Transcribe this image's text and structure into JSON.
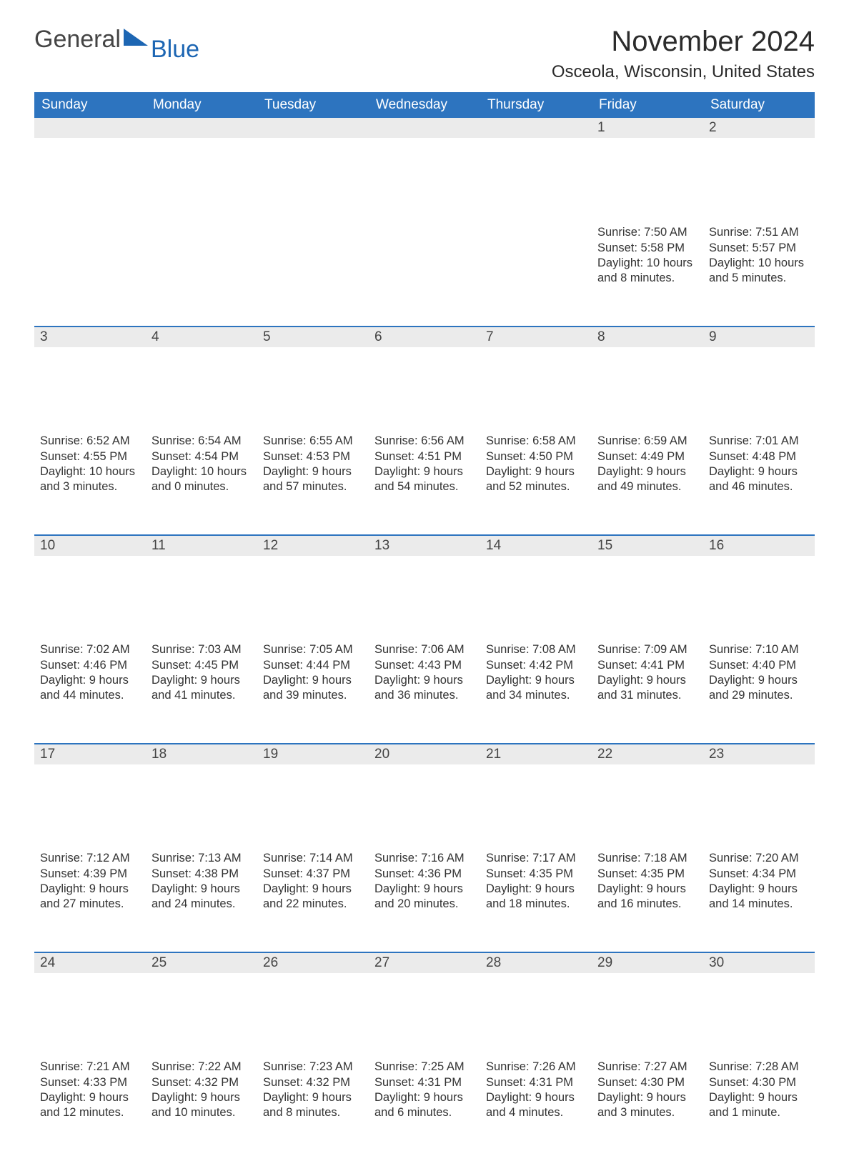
{
  "logo": {
    "text1": "General",
    "text2": "Blue",
    "triangle_color": "#1d66b3"
  },
  "title": "November 2024",
  "subtitle": "Osceola, Wisconsin, United States",
  "colors": {
    "header_bg": "#2d74bf",
    "header_text": "#ffffff",
    "daynum_bg": "#ebebeb",
    "daynum_text": "#444444",
    "body_text": "#333333",
    "row_border": "#2d74bf",
    "page_bg": "#ffffff"
  },
  "typography": {
    "title_fontsize": 40,
    "subtitle_fontsize": 24,
    "header_fontsize": 19,
    "daynum_fontsize": 19,
    "cell_fontsize": 16.5,
    "font_family": "Arial"
  },
  "layout": {
    "columns": 7,
    "rows": 5,
    "header_row_border_width": 2
  },
  "day_headers": [
    "Sunday",
    "Monday",
    "Tuesday",
    "Wednesday",
    "Thursday",
    "Friday",
    "Saturday"
  ],
  "weeks": [
    [
      null,
      null,
      null,
      null,
      null,
      {
        "n": "1",
        "sunrise": "Sunrise: 7:50 AM",
        "sunset": "Sunset: 5:58 PM",
        "daylight": "Daylight: 10 hours and 8 minutes."
      },
      {
        "n": "2",
        "sunrise": "Sunrise: 7:51 AM",
        "sunset": "Sunset: 5:57 PM",
        "daylight": "Daylight: 10 hours and 5 minutes."
      }
    ],
    [
      {
        "n": "3",
        "sunrise": "Sunrise: 6:52 AM",
        "sunset": "Sunset: 4:55 PM",
        "daylight": "Daylight: 10 hours and 3 minutes."
      },
      {
        "n": "4",
        "sunrise": "Sunrise: 6:54 AM",
        "sunset": "Sunset: 4:54 PM",
        "daylight": "Daylight: 10 hours and 0 minutes."
      },
      {
        "n": "5",
        "sunrise": "Sunrise: 6:55 AM",
        "sunset": "Sunset: 4:53 PM",
        "daylight": "Daylight: 9 hours and 57 minutes."
      },
      {
        "n": "6",
        "sunrise": "Sunrise: 6:56 AM",
        "sunset": "Sunset: 4:51 PM",
        "daylight": "Daylight: 9 hours and 54 minutes."
      },
      {
        "n": "7",
        "sunrise": "Sunrise: 6:58 AM",
        "sunset": "Sunset: 4:50 PM",
        "daylight": "Daylight: 9 hours and 52 minutes."
      },
      {
        "n": "8",
        "sunrise": "Sunrise: 6:59 AM",
        "sunset": "Sunset: 4:49 PM",
        "daylight": "Daylight: 9 hours and 49 minutes."
      },
      {
        "n": "9",
        "sunrise": "Sunrise: 7:01 AM",
        "sunset": "Sunset: 4:48 PM",
        "daylight": "Daylight: 9 hours and 46 minutes."
      }
    ],
    [
      {
        "n": "10",
        "sunrise": "Sunrise: 7:02 AM",
        "sunset": "Sunset: 4:46 PM",
        "daylight": "Daylight: 9 hours and 44 minutes."
      },
      {
        "n": "11",
        "sunrise": "Sunrise: 7:03 AM",
        "sunset": "Sunset: 4:45 PM",
        "daylight": "Daylight: 9 hours and 41 minutes."
      },
      {
        "n": "12",
        "sunrise": "Sunrise: 7:05 AM",
        "sunset": "Sunset: 4:44 PM",
        "daylight": "Daylight: 9 hours and 39 minutes."
      },
      {
        "n": "13",
        "sunrise": "Sunrise: 7:06 AM",
        "sunset": "Sunset: 4:43 PM",
        "daylight": "Daylight: 9 hours and 36 minutes."
      },
      {
        "n": "14",
        "sunrise": "Sunrise: 7:08 AM",
        "sunset": "Sunset: 4:42 PM",
        "daylight": "Daylight: 9 hours and 34 minutes."
      },
      {
        "n": "15",
        "sunrise": "Sunrise: 7:09 AM",
        "sunset": "Sunset: 4:41 PM",
        "daylight": "Daylight: 9 hours and 31 minutes."
      },
      {
        "n": "16",
        "sunrise": "Sunrise: 7:10 AM",
        "sunset": "Sunset: 4:40 PM",
        "daylight": "Daylight: 9 hours and 29 minutes."
      }
    ],
    [
      {
        "n": "17",
        "sunrise": "Sunrise: 7:12 AM",
        "sunset": "Sunset: 4:39 PM",
        "daylight": "Daylight: 9 hours and 27 minutes."
      },
      {
        "n": "18",
        "sunrise": "Sunrise: 7:13 AM",
        "sunset": "Sunset: 4:38 PM",
        "daylight": "Daylight: 9 hours and 24 minutes."
      },
      {
        "n": "19",
        "sunrise": "Sunrise: 7:14 AM",
        "sunset": "Sunset: 4:37 PM",
        "daylight": "Daylight: 9 hours and 22 minutes."
      },
      {
        "n": "20",
        "sunrise": "Sunrise: 7:16 AM",
        "sunset": "Sunset: 4:36 PM",
        "daylight": "Daylight: 9 hours and 20 minutes."
      },
      {
        "n": "21",
        "sunrise": "Sunrise: 7:17 AM",
        "sunset": "Sunset: 4:35 PM",
        "daylight": "Daylight: 9 hours and 18 minutes."
      },
      {
        "n": "22",
        "sunrise": "Sunrise: 7:18 AM",
        "sunset": "Sunset: 4:35 PM",
        "daylight": "Daylight: 9 hours and 16 minutes."
      },
      {
        "n": "23",
        "sunrise": "Sunrise: 7:20 AM",
        "sunset": "Sunset: 4:34 PM",
        "daylight": "Daylight: 9 hours and 14 minutes."
      }
    ],
    [
      {
        "n": "24",
        "sunrise": "Sunrise: 7:21 AM",
        "sunset": "Sunset: 4:33 PM",
        "daylight": "Daylight: 9 hours and 12 minutes."
      },
      {
        "n": "25",
        "sunrise": "Sunrise: 7:22 AM",
        "sunset": "Sunset: 4:32 PM",
        "daylight": "Daylight: 9 hours and 10 minutes."
      },
      {
        "n": "26",
        "sunrise": "Sunrise: 7:23 AM",
        "sunset": "Sunset: 4:32 PM",
        "daylight": "Daylight: 9 hours and 8 minutes."
      },
      {
        "n": "27",
        "sunrise": "Sunrise: 7:25 AM",
        "sunset": "Sunset: 4:31 PM",
        "daylight": "Daylight: 9 hours and 6 minutes."
      },
      {
        "n": "28",
        "sunrise": "Sunrise: 7:26 AM",
        "sunset": "Sunset: 4:31 PM",
        "daylight": "Daylight: 9 hours and 4 minutes."
      },
      {
        "n": "29",
        "sunrise": "Sunrise: 7:27 AM",
        "sunset": "Sunset: 4:30 PM",
        "daylight": "Daylight: 9 hours and 3 minutes."
      },
      {
        "n": "30",
        "sunrise": "Sunrise: 7:28 AM",
        "sunset": "Sunset: 4:30 PM",
        "daylight": "Daylight: 9 hours and 1 minute."
      }
    ]
  ]
}
